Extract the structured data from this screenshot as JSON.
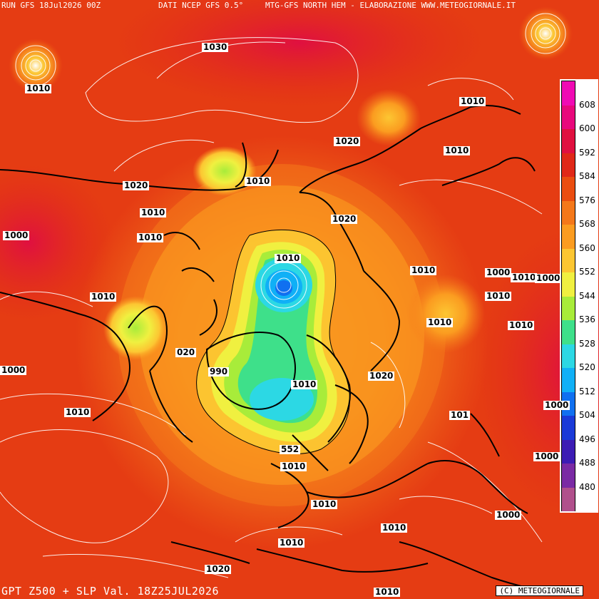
{
  "header": {
    "run": "RUN GFS 18Jul2026 00Z",
    "source": "DATI NCEP GFS 0.5°",
    "product": "MTG-GFS NORTH HEM - ELABORAZIONE WWW.METEOGIORNALE.IT"
  },
  "footer": {
    "title": "GPT Z500 + SLP Val. 18Z25JUL2026",
    "copyright": "(C) METEOGIORNALE"
  },
  "legend": {
    "unit_note": "",
    "levels": [
      {
        "value": "608",
        "color": "#f00ab4"
      },
      {
        "value": "600",
        "color": "#e8087c"
      },
      {
        "value": "592",
        "color": "#e01040"
      },
      {
        "value": "584",
        "color": "#e02818"
      },
      {
        "value": "576",
        "color": "#ea4d10"
      },
      {
        "value": "568",
        "color": "#f4781a"
      },
      {
        "value": "560",
        "color": "#fb9c20"
      },
      {
        "value": "552",
        "color": "#fcc632"
      },
      {
        "value": "544",
        "color": "#f0f040"
      },
      {
        "value": "536",
        "color": "#a8ec3a"
      },
      {
        "value": "528",
        "color": "#3ee08a"
      },
      {
        "value": "520",
        "color": "#2cd8e4"
      },
      {
        "value": "512",
        "color": "#10b0f6"
      },
      {
        "value": "504",
        "color": "#1070f0"
      },
      {
        "value": "496",
        "color": "#1a3ad8"
      },
      {
        "value": "488",
        "color": "#3c1cb4"
      },
      {
        "value": "480",
        "color": "#7a2aa4"
      },
      {
        "value": "",
        "color": "#b0508c"
      }
    ]
  },
  "isobars": [
    {
      "label": "1030"
    },
    {
      "label": "1010"
    },
    {
      "label": "1010"
    },
    {
      "label": "1020"
    },
    {
      "label": "1010"
    },
    {
      "label": "1010"
    },
    {
      "label": "1020"
    },
    {
      "label": "1010"
    },
    {
      "label": "1000"
    },
    {
      "label": "1010"
    },
    {
      "label": "1020"
    },
    {
      "label": "1010"
    },
    {
      "label": "1010"
    },
    {
      "label": "1000"
    },
    {
      "label": "1010"
    },
    {
      "label": "1010"
    },
    {
      "label": "1010"
    },
    {
      "label": "1010"
    },
    {
      "label": "1010"
    },
    {
      "label": "020"
    },
    {
      "label": "1000"
    },
    {
      "label": "990"
    },
    {
      "label": "1010"
    },
    {
      "label": "1020"
    },
    {
      "label": "1010"
    },
    {
      "label": "101"
    },
    {
      "label": "1000"
    },
    {
      "label": "1000"
    },
    {
      "label": "1010"
    },
    {
      "label": "1000"
    },
    {
      "label": "1010"
    },
    {
      "label": "1010"
    },
    {
      "label": "1020"
    },
    {
      "label": "1010"
    },
    {
      "label": "1000"
    },
    {
      "label": "1010"
    }
  ],
  "contour_labels": [
    {
      "label": "552"
    }
  ]
}
